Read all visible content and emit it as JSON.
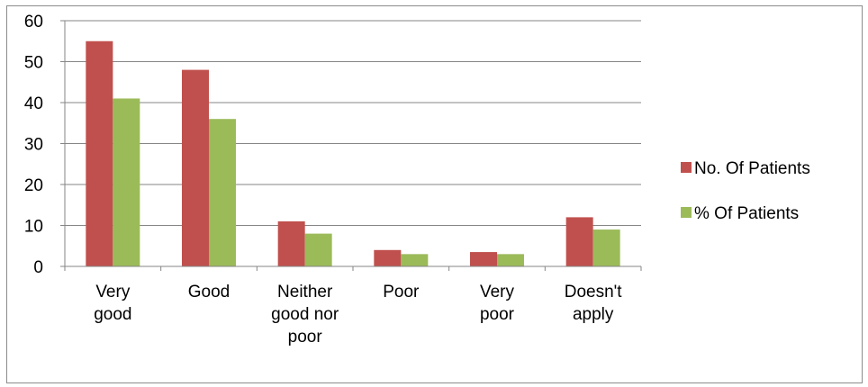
{
  "chart_data": {
    "type": "bar",
    "categories": [
      [
        "Very",
        "good"
      ],
      [
        "Good"
      ],
      [
        "Neither",
        "good nor",
        "poor"
      ],
      [
        "Poor"
      ],
      [
        "Very",
        "poor"
      ],
      [
        "Doesn't",
        "apply"
      ]
    ],
    "series": [
      {
        "name": "No. Of Patients",
        "color": "#c0504d",
        "values": [
          55,
          48,
          11,
          4,
          3.5,
          12
        ]
      },
      {
        "name": "% Of Patients",
        "color": "#9bbb59",
        "values": [
          41,
          36,
          8,
          3,
          3,
          9
        ]
      }
    ],
    "ylim": [
      0,
      60
    ],
    "yticks": [
      0,
      10,
      20,
      30,
      40,
      50,
      60
    ],
    "grid": true,
    "legend": "right"
  }
}
